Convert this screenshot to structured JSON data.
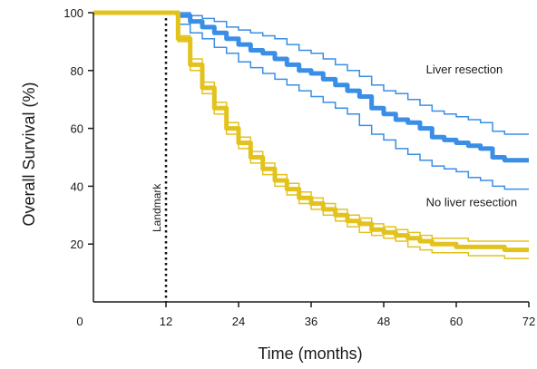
{
  "chart_data": {
    "type": "line",
    "title": "",
    "xlabel": "Time (months)",
    "ylabel": "Overall Survival (%)",
    "xlim": [
      0,
      72
    ],
    "ylim": [
      0,
      100
    ],
    "xticks": [
      0,
      12,
      24,
      36,
      48,
      60,
      72
    ],
    "yticks": [
      20,
      40,
      60,
      80,
      100
    ],
    "grid": false,
    "landmark": {
      "x": 12,
      "label": "Landmark"
    },
    "series": [
      {
        "name": "Liver resection",
        "color": "#3a8ee6",
        "x": [
          0,
          12,
          14,
          16,
          18,
          20,
          22,
          24,
          26,
          28,
          30,
          32,
          34,
          36,
          38,
          40,
          42,
          44,
          46,
          48,
          50,
          52,
          54,
          56,
          58,
          60,
          62,
          64,
          66,
          68,
          70,
          72
        ],
        "y": [
          100,
          100,
          99,
          97,
          95,
          93,
          91,
          89,
          87,
          86,
          84,
          82,
          80,
          79,
          77,
          75,
          73,
          71,
          67,
          65,
          63,
          62,
          60,
          57,
          56,
          55,
          54,
          53,
          50,
          49,
          49,
          49
        ],
        "ci_lower": [
          100,
          100,
          96,
          93,
          91,
          88,
          86,
          83,
          81,
          79,
          77,
          75,
          73,
          71,
          69,
          67,
          65,
          61,
          58,
          56,
          53,
          51,
          49,
          47,
          46,
          45,
          43,
          42,
          40,
          39,
          39,
          39
        ],
        "ci_upper": [
          100,
          100,
          100,
          99,
          98,
          97,
          95,
          94,
          93,
          92,
          91,
          89,
          87,
          86,
          84,
          82,
          80,
          78,
          75,
          73,
          72,
          70,
          68,
          66,
          65,
          64,
          63,
          62,
          59,
          58,
          58,
          58
        ]
      },
      {
        "name": "No liver resection",
        "color": "#e3c21c",
        "x": [
          0,
          12,
          14,
          16,
          18,
          20,
          22,
          24,
          26,
          28,
          30,
          32,
          34,
          36,
          38,
          40,
          42,
          44,
          46,
          48,
          50,
          52,
          54,
          56,
          58,
          60,
          62,
          64,
          66,
          68,
          70,
          72
        ],
        "y": [
          100,
          100,
          91,
          82,
          74,
          67,
          60,
          55,
          50,
          46,
          42,
          39,
          36,
          34,
          32,
          30,
          28,
          27,
          25,
          24,
          23,
          22,
          21,
          20,
          20,
          19,
          19,
          19,
          19,
          18,
          18,
          18
        ],
        "ci_lower": [
          100,
          100,
          90,
          80,
          72,
          65,
          58,
          53,
          48,
          44,
          40,
          37,
          34,
          32,
          30,
          28,
          26,
          24,
          23,
          22,
          21,
          19,
          18,
          17,
          17,
          17,
          16,
          16,
          16,
          15,
          15,
          15
        ],
        "ci_upper": [
          100,
          100,
          92,
          84,
          76,
          69,
          62,
          57,
          52,
          48,
          44,
          41,
          38,
          36,
          34,
          32,
          30,
          29,
          27,
          26,
          25,
          24,
          23,
          22,
          22,
          22,
          21,
          21,
          21,
          21,
          21,
          21
        ]
      }
    ],
    "annotations": [
      {
        "text": "Liver resection",
        "x": 55,
        "y": 79
      },
      {
        "text": "No liver resection",
        "x": 55,
        "y": 33
      }
    ]
  }
}
